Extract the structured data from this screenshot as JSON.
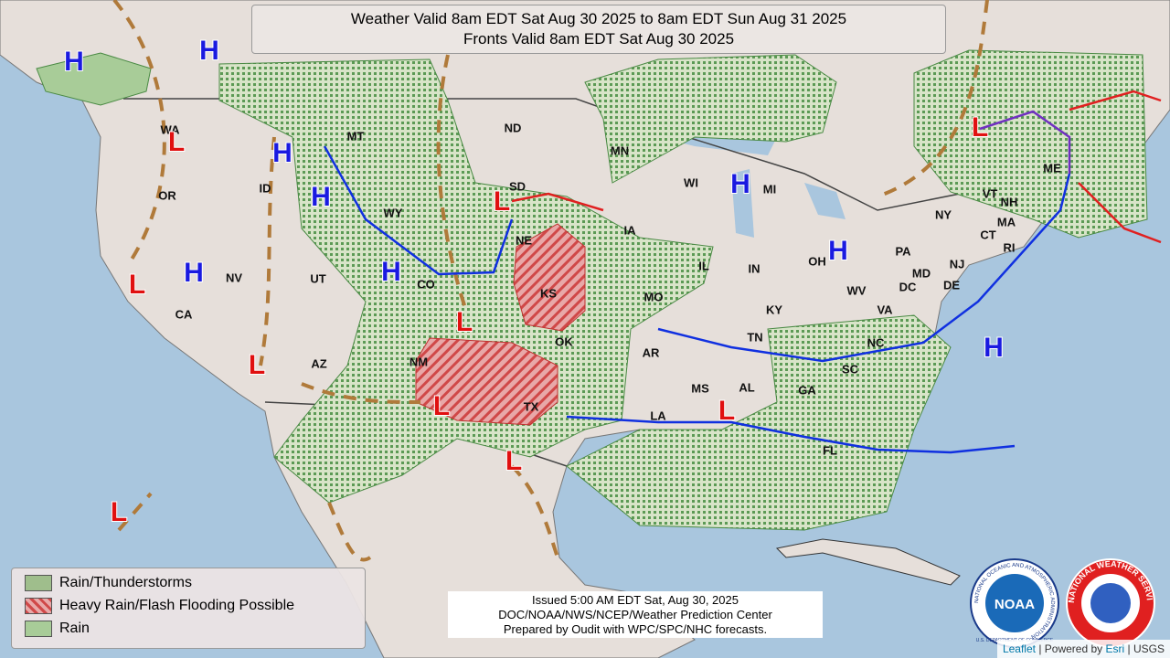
{
  "header": {
    "line1": "Weather Valid 8am EDT Sat Aug 30 2025 to 8am EDT Sun Aug 31 2025",
    "line2": "Fronts Valid 8am EDT Sat Aug 30 2025"
  },
  "states": [
    "WA",
    "OR",
    "ID",
    "MT",
    "WY",
    "NV",
    "UT",
    "CA",
    "AZ",
    "CO",
    "NM",
    "ND",
    "SD",
    "NE",
    "KS",
    "OK",
    "TX",
    "MN",
    "IA",
    "MO",
    "AR",
    "LA",
    "WI",
    "IL",
    "MI",
    "IN",
    "OH",
    "KY",
    "TN",
    "MS",
    "AL",
    "GA",
    "FL",
    "SC",
    "NC",
    "VA",
    "WV",
    "PA",
    "NY",
    "MD",
    "DE",
    "DC",
    "NJ",
    "CT",
    "RI",
    "MA",
    "VT",
    "NH",
    "ME"
  ],
  "highs": [
    "H",
    "H",
    "H",
    "H",
    "H",
    "H",
    "H",
    "H",
    "H"
  ],
  "lows": [
    "L",
    "L",
    "L",
    "L",
    "L",
    "L",
    "L",
    "L",
    "L",
    "L"
  ],
  "legend": [
    "Rain/Thunderstorms",
    "Heavy Rain/Flash Flooding Possible",
    "Rain"
  ],
  "issued": [
    "Issued  5:00 AM EDT  Sat, Aug 30, 2025",
    "DOC/NOAA/NWS/NCEP/Weather Prediction Center",
    "Prepared by Oudit with WPC/SPC/NHC forecasts."
  ],
  "logos": {
    "noaa": "NOAA",
    "noaa_ring": "NATIONAL OCEANIC AND ATMOSPHERIC ADMINISTRATION",
    "commerce": "U.S. DEPARTMENT OF COMMERCE",
    "nws": "NATIONAL WEATHER SERVICE"
  },
  "attribution": {
    "leaflet": "Leaflet",
    "separator": "|",
    "powered": "Powered by",
    "esri": "Esri",
    "usgs": "USGS"
  }
}
